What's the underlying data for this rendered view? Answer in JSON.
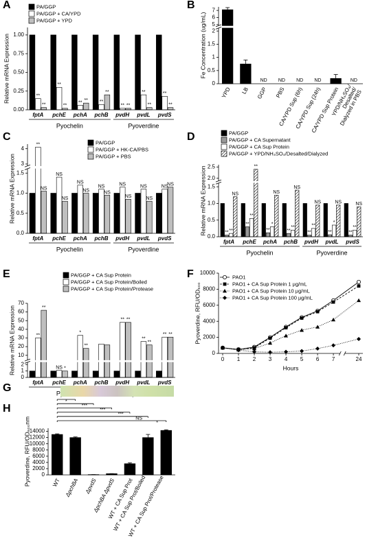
{
  "chart_data": [
    {
      "type": "bar",
      "panel": "A",
      "y_label": "Relative mRNA Expression",
      "categories": [
        "fptA",
        "pchE",
        "pchA",
        "pchB",
        "pvdH",
        "pvdL",
        "pvdS"
      ],
      "category_groups": [
        "Pyochelin",
        "Pyochelin",
        "Pyochelin",
        "Pyochelin",
        "Pyoverdine",
        "Pyoverdine",
        "Pyoverdine"
      ],
      "series": [
        {
          "name": "PA/GGP",
          "color": "#000000",
          "values": [
            1,
            1,
            1,
            1,
            1,
            1,
            1
          ]
        },
        {
          "name": "PA/GGP + CA/YPD",
          "color": "#ffffff",
          "values": [
            0.15,
            0.3,
            0.06,
            0.07,
            0.02,
            0.2,
            0.18
          ],
          "annotations": [
            "**",
            "**",
            "**",
            "**",
            "**",
            "**",
            "**"
          ]
        },
        {
          "name": "PA/GGP + YPD",
          "color": "#bfbfbf",
          "values": [
            0.03,
            0.02,
            0.09,
            0.2,
            0.02,
            0.03,
            0.03
          ],
          "annotations": [
            "**",
            "**",
            "**",
            "**",
            "**",
            "**",
            "**"
          ]
        }
      ],
      "ylim": [
        0,
        1.1
      ],
      "yticks": [
        {
          "value": 0,
          "label": "0.00"
        },
        {
          "value": 0.25,
          "label": "0.25"
        },
        {
          "value": 0.5,
          "label": "0.50"
        },
        {
          "value": 0.75,
          "label": "0.75"
        },
        {
          "value": 1,
          "label": "1.00"
        }
      ]
    },
    {
      "type": "bar",
      "panel": "B",
      "y_label": "Fe Concentration (ug/mL)",
      "categories": [
        "YPD",
        "LB",
        "GGP",
        "PBS",
        "CA/YPD Sup (6h)",
        "CA/YPD Sup (24h)",
        "CA/YPD Sup Protein",
        "YPD/NH₄SO₄/Desalted/Dialyzed in PBS"
      ],
      "values": [
        7.1,
        0.75,
        null,
        null,
        null,
        null,
        0.2,
        null
      ],
      "errors": [
        0.3,
        0.15,
        null,
        null,
        null,
        null,
        0.15,
        null
      ],
      "value_labels": [
        null,
        null,
        "ND",
        "ND",
        "ND",
        "ND",
        null,
        "ND"
      ],
      "color": "#000000",
      "ylim": [
        0,
        7.5
      ],
      "ybreak": [
        2.1,
        4.9
      ],
      "yticks": [
        0,
        0.5,
        1,
        1.5,
        2,
        5,
        6,
        7
      ]
    },
    {
      "type": "bar",
      "panel": "C",
      "y_label": "Relative mRNA Expression",
      "categories": [
        "fptA",
        "pchE",
        "pchA",
        "pchB",
        "pvdH",
        "pvdL",
        "pvdS"
      ],
      "category_groups": [
        "Pyochelin",
        "Pyochelin",
        "Pyochelin",
        "Pyochelin",
        "Pyoverdine",
        "Pyoverdine",
        "Pyoverdine"
      ],
      "series": [
        {
          "name": "PA/GGP",
          "color": "#000000",
          "values": [
            1,
            1,
            1,
            1,
            1,
            1,
            1
          ]
        },
        {
          "name": "PA/GGP + HK-CA/PBS",
          "color": "#ffffff",
          "values": [
            4.1,
            1.4,
            1.2,
            1.1,
            1.15,
            1.1,
            1.1
          ],
          "annotations": [
            "**",
            "NS",
            "NS",
            "NS",
            "NS",
            "NS",
            "NS"
          ]
        },
        {
          "name": "PA/GGP + PBS",
          "color": "#bfbfbf",
          "values": [
            1.05,
            0.8,
            1.0,
            0.95,
            0.85,
            0.8,
            1.15
          ],
          "annotations": [
            "NS",
            "NS",
            "NS",
            "NS",
            "NS",
            "NS",
            "NS"
          ]
        }
      ],
      "ylim": [
        0,
        4.3
      ],
      "ybreak": [
        1.6,
        2.9
      ],
      "yticks": [
        {
          "value": 0,
          "label": "0.0"
        },
        0.5,
        {
          "value": 1,
          "label": "1.0"
        },
        1.5,
        3,
        4
      ]
    },
    {
      "type": "bar",
      "panel": "D",
      "y_label": "Relative mRNA Expression",
      "categories": [
        "fptA",
        "pchE",
        "pchA",
        "pchB",
        "pvdH",
        "pvdL",
        "pvdS"
      ],
      "category_groups": [
        "Pyochelin",
        "Pyochelin",
        "Pyochelin",
        "Pyochelin",
        "Pyoverdine",
        "Pyoverdine",
        "Pyoverdine"
      ],
      "series": [
        {
          "name": "PA/GGP",
          "color": "#000000",
          "values": [
            1,
            1,
            1,
            1,
            1,
            1,
            1
          ]
        },
        {
          "name": "PA/GGP + CA Supernatant",
          "color": "#999999",
          "values": [
            0.05,
            0.3,
            0.12,
            0.1,
            0.05,
            0.06,
            0.05
          ],
          "annotations": [
            "**",
            "**",
            "**",
            "**",
            "**",
            "**",
            "**"
          ]
        },
        {
          "name": "PA/GGP + CA Sup Protein",
          "color": "#ffffff",
          "values": [
            0.1,
            0.55,
            0.3,
            0.2,
            0.25,
            0.35,
            0.2
          ],
          "annotations": [
            "**",
            "**",
            "*",
            "**",
            "**",
            "*",
            "**"
          ]
        },
        {
          "name": "PA/GGP + YPD/NH₄SO₄/Desalted/Dialyzed",
          "color": "#ffffff",
          "pattern": "hatch",
          "values": [
            1.2,
            2.4,
            1.25,
            1.4,
            0.95,
            0.95,
            0.9
          ],
          "annotations": [
            "NS",
            "**",
            "NS",
            "NS",
            "NS",
            "NS",
            "NS"
          ]
        }
      ],
      "ylim": [
        0,
        2.6
      ],
      "ybreak": [
        1.6,
        1.9
      ],
      "yticks": [
        {
          "value": 0,
          "label": "0.0"
        },
        0.5,
        {
          "value": 1,
          "label": "1.0"
        },
        1.5,
        {
          "value": 2,
          "label": "2.0"
        },
        2.5
      ]
    },
    {
      "type": "bar",
      "panel": "E",
      "y_label": "Relative mRNA Expression",
      "categories": [
        "fptA",
        "pchE",
        "pchA",
        "pchB",
        "pvdH",
        "pvdL",
        "pvdS"
      ],
      "category_groups": [
        "Pyochelin",
        "Pyochelin",
        "Pyochelin",
        "Pyochelin",
        "Pyoverdine",
        "Pyoverdine",
        "Pyoverdine"
      ],
      "series": [
        {
          "name": "PA/GGP + CA Sup Protein",
          "color": "#000000",
          "values": [
            1,
            1,
            1,
            1,
            1,
            1,
            1
          ]
        },
        {
          "name": "PA/GGP + CA Sup Protein/Boiled",
          "color": "#ffffff",
          "values": [
            30,
            1.1,
            33,
            23,
            48,
            26,
            31
          ],
          "annotations": [
            "**",
            "NS",
            "*",
            null,
            "**",
            "**",
            "**"
          ]
        },
        {
          "name": "PA/GGP + CA Sup Protein/Protease",
          "color": "#bfbfbf",
          "values": [
            62,
            1.0,
            18,
            22,
            48,
            22,
            31
          ],
          "annotations": [
            "**",
            "*",
            "**",
            null,
            "**",
            "**",
            "**"
          ]
        }
      ],
      "ylim": [
        0,
        70
      ],
      "ybreak": [
        2.3,
        5
      ],
      "yticks": [
        0,
        1,
        2,
        10,
        20,
        30,
        40,
        50,
        60,
        70
      ]
    },
    {
      "type": "line",
      "panel": "F",
      "y_label": "Pyoverdine, RFU/OD₆₀₀",
      "x_label": "Hours",
      "x": [
        0,
        1,
        2,
        3,
        4,
        5,
        6,
        7,
        24
      ],
      "series": [
        {
          "name": "PAO1",
          "color": "#000000",
          "marker": "circle-open",
          "dash": "solid",
          "values": [
            700,
            500,
            800,
            2000,
            3300,
            4500,
            5300,
            6600,
            8900
          ]
        },
        {
          "name": "PAO1 + CA Sup Protein 1 µg/mL",
          "color": "#000000",
          "marker": "square",
          "dash": "dashed",
          "values": [
            700,
            500,
            700,
            1900,
            3200,
            4400,
            5200,
            6400,
            8400
          ]
        },
        {
          "name": "PAO1 + CA Sup Protein 10 µg/mL",
          "color": "#000000",
          "marker": "triangle",
          "dash": "dotted",
          "values": [
            700,
            450,
            600,
            1300,
            2200,
            2900,
            3300,
            4200,
            6600
          ]
        },
        {
          "name": "PAO1 + CA Sup Protein 100 µg/mL",
          "color": "#000000",
          "marker": "diamond",
          "dash": "dotted",
          "values": [
            700,
            400,
            200,
            150,
            200,
            300,
            600,
            1000,
            1800
          ]
        }
      ],
      "xlim": [
        0,
        24
      ],
      "xbreak": [
        7.4,
        23.6
      ],
      "xticks": [
        0,
        1,
        2,
        3,
        4,
        5,
        6,
        7,
        24
      ],
      "ylim": [
        0,
        10000
      ],
      "yticks": [
        0,
        2000,
        4000,
        6000,
        8000,
        10000
      ]
    },
    {
      "type": "image",
      "panel": "G"
    },
    {
      "type": "bar",
      "panel": "H",
      "y_label": "Pyoverdine, RFU/OD₆₀₀nm",
      "categories": [
        "WT",
        "ΔpchBA",
        "ΔpvdS",
        "ΔpchBA ΔpvdS",
        "WT + CA Sup Prot",
        "WT + CA Sup Prot/Boiled",
        "WT + CA Sup Prot/Protease"
      ],
      "values": [
        13000,
        12000,
        100,
        400,
        3600,
        12000,
        14300
      ],
      "errors": [
        200,
        200,
        0,
        0,
        300,
        1000,
        200
      ],
      "comparisons": [
        null,
        "*",
        "***",
        "***",
        "***",
        "NS",
        "*"
      ],
      "color": "#000000",
      "ylim": [
        0,
        15000
      ],
      "yticks": [
        0,
        2000,
        4000,
        6000,
        8000,
        10000,
        12000,
        14000
      ]
    }
  ]
}
